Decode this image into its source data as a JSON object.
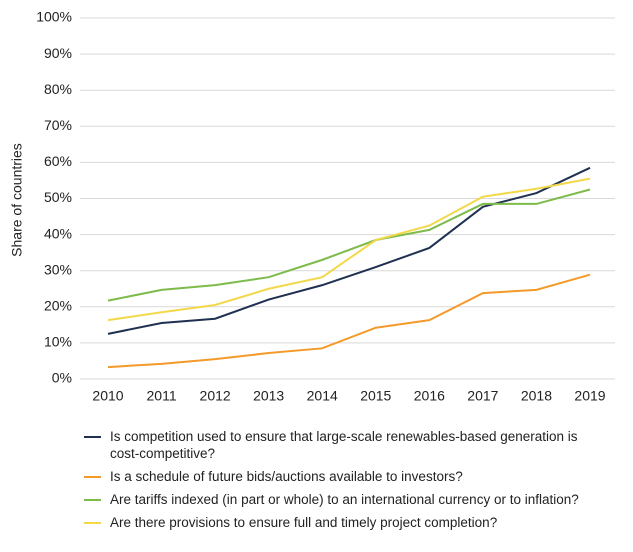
{
  "chart_data": {
    "type": "line",
    "y_label": "Share of countries",
    "categories": [
      "2010",
      "2011",
      "2012",
      "2013",
      "2014",
      "2015",
      "2016",
      "2017",
      "2018",
      "2019"
    ],
    "series": [
      {
        "name": "Is competition used to ensure that large-scale renewables-based generation is cost-competitive?",
        "color": "#1f3050",
        "values": [
          12.5,
          15.5,
          16.7,
          22,
          26,
          31,
          36.3,
          47.7,
          51.5,
          58.5
        ]
      },
      {
        "name": "Is a schedule of future bids/auctions available to investors?",
        "color": "#f39a2a",
        "values": [
          3.3,
          4.2,
          5.5,
          7.2,
          8.5,
          14.2,
          16.3,
          23.8,
          24.7,
          28.9
        ]
      },
      {
        "name": "Are tariffs indexed (in part or whole) to an international currency or to inflation?",
        "color": "#7dbb4a",
        "values": [
          21.7,
          24.7,
          26,
          28.2,
          33,
          38.5,
          41.3,
          48.5,
          48.5,
          52.5
        ]
      },
      {
        "name": "Are there provisions to ensure full and timely project completion?",
        "color": "#f3d84a",
        "values": [
          16.3,
          18.5,
          20.5,
          25,
          28.2,
          38.5,
          42.5,
          50.5,
          52.7,
          55.5
        ]
      }
    ],
    "ylim": [
      0,
      100
    ],
    "yticks": [
      {
        "value": 0,
        "label": "0%"
      },
      {
        "value": 10,
        "label": "10%"
      },
      {
        "value": 20,
        "label": "20%"
      },
      {
        "value": 30,
        "label": "30%"
      },
      {
        "value": 40,
        "label": "40%"
      },
      {
        "value": 50,
        "label": "50%"
      },
      {
        "value": 60,
        "label": "60%"
      },
      {
        "value": 70,
        "label": "70%"
      },
      {
        "value": 80,
        "label": "80%"
      },
      {
        "value": 90,
        "label": "90%"
      },
      {
        "value": 100,
        "label": "100%"
      }
    ],
    "grid": true
  }
}
